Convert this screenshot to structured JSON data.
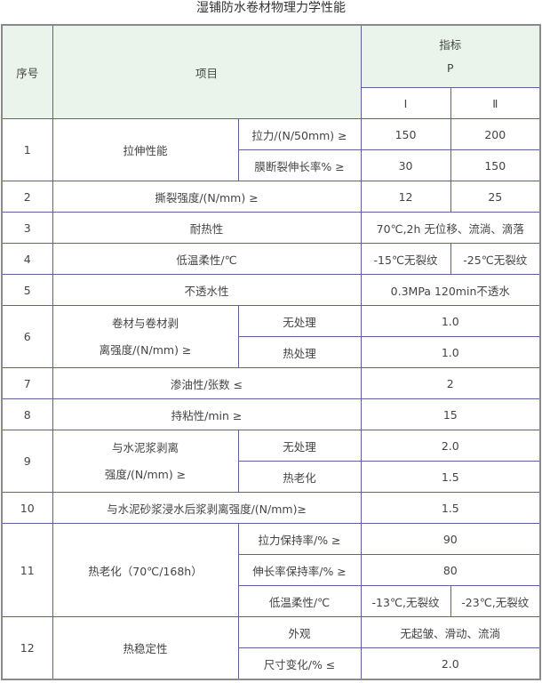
{
  "title": "湿铺防水卷材物理力学性能",
  "header": {
    "no": "序号",
    "item": "项目",
    "index": "指标",
    "type": "P",
    "grade1": "Ⅰ",
    "grade2": "Ⅱ"
  },
  "rows": [
    {
      "no": "1",
      "item": "拉伸性能",
      "sub": [
        {
          "name": "拉力/(N/50mm) ≥",
          "v1": "150",
          "v2": "200"
        },
        {
          "name": "膜断裂伸长率% ≥",
          "v1": "30",
          "v2": "150"
        }
      ]
    },
    {
      "no": "2",
      "item": "撕裂强度/(N/mm) ≥",
      "v1": "12",
      "v2": "25"
    },
    {
      "no": "3",
      "item": "耐热性",
      "v": "70℃,2h 无位移、流淌、滴落"
    },
    {
      "no": "4",
      "item": "低温柔性/℃",
      "v1": "-15℃无裂纹",
      "v2": "-25℃无裂纹"
    },
    {
      "no": "5",
      "item": "不透水性",
      "v": "0.3MPa 120min不透水"
    },
    {
      "no": "6",
      "item_l1": "卷材与卷材剥",
      "item_l2": "离强度/(N/mm) ≥",
      "sub": [
        {
          "name": "无处理",
          "v": "1.0"
        },
        {
          "name": "热处理",
          "v": "1.0"
        }
      ]
    },
    {
      "no": "7",
      "item": "渗油性/张数 ≤",
      "v": "2"
    },
    {
      "no": "8",
      "item": "持粘性/min ≥",
      "v": "15"
    },
    {
      "no": "9",
      "item_l1": "与水泥浆剥离",
      "item_l2": "强度/(N/mm) ≥",
      "sub": [
        {
          "name": "无处理",
          "v": "2.0"
        },
        {
          "name": "热老化",
          "v": "1.5"
        }
      ]
    },
    {
      "no": "10",
      "item": "与水泥砂浆浸水后浆剥离强度/(N/mm)≥",
      "v": "1.5"
    },
    {
      "no": "11",
      "item": "热老化（70℃/168h）",
      "sub": [
        {
          "name": "拉力保持率/% ≥",
          "v": "90"
        },
        {
          "name": "伸长率保持率/% ≥",
          "v": "80"
        },
        {
          "name": "低温柔性/℃",
          "v1": "-13℃,无裂纹",
          "v2": "-23℃,无裂纹"
        }
      ]
    },
    {
      "no": "12",
      "item": "热稳定性",
      "sub": [
        {
          "name": "外观",
          "v": "无起皱、滑动、流淌"
        },
        {
          "name": "尺寸变化/% ≤",
          "v": "2.0"
        }
      ]
    }
  ]
}
